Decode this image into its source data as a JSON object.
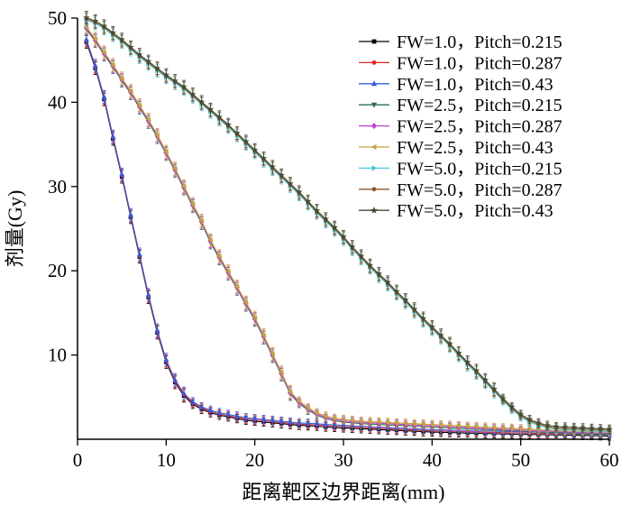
{
  "chart_data": {
    "type": "line",
    "title": "",
    "xlabel": "距离靶区边界距离(mm)",
    "ylabel": "剂量(Gy)",
    "xlim": [
      0,
      60
    ],
    "ylim": [
      0,
      50
    ],
    "xticks": [
      0,
      10,
      20,
      30,
      40,
      50,
      60
    ],
    "yticks": [
      10,
      20,
      30,
      40,
      50
    ],
    "grid": false,
    "legend_position": "top-right",
    "x": [
      1,
      2,
      3,
      4,
      5,
      6,
      7,
      8,
      9,
      10,
      11,
      12,
      13,
      14,
      15,
      16,
      17,
      18,
      19,
      20,
      21,
      22,
      23,
      24,
      25,
      26,
      27,
      28,
      29,
      30,
      31,
      32,
      33,
      34,
      35,
      36,
      37,
      38,
      39,
      40,
      41,
      42,
      43,
      44,
      45,
      46,
      47,
      48,
      49,
      50,
      51,
      52,
      53,
      54,
      55,
      56,
      57,
      58,
      59,
      60
    ],
    "curves": {
      "fw1": [
        47.3,
        44.2,
        40.5,
        35.8,
        31.3,
        26.5,
        21.8,
        17.0,
        12.8,
        9.3,
        6.9,
        5.3,
        4.3,
        3.7,
        3.3,
        3.0,
        2.8,
        2.6,
        2.4,
        2.3,
        2.2,
        2.1,
        2.0,
        1.9,
        1.8,
        1.75,
        1.7,
        1.6,
        1.55,
        1.5,
        1.45,
        1.4,
        1.35,
        1.3,
        1.25,
        1.2,
        1.15,
        1.1,
        1.05,
        1.0,
        0.97,
        0.94,
        0.91,
        0.88,
        0.85,
        0.82,
        0.8,
        0.78,
        0.76,
        0.74,
        0.72,
        0.7,
        0.68,
        0.66,
        0.64,
        0.62,
        0.6,
        0.58,
        0.56,
        0.54
      ],
      "fw25": [
        48.8,
        47.4,
        45.8,
        44.3,
        42.7,
        41.2,
        39.5,
        37.8,
        36.0,
        34.0,
        32.0,
        29.9,
        27.8,
        25.8,
        23.5,
        21.6,
        19.8,
        18.0,
        16.1,
        14.3,
        12.2,
        10.0,
        7.8,
        5.5,
        4.4,
        3.6,
        3.0,
        2.6,
        2.35,
        2.2,
        2.1,
        2.0,
        1.95,
        1.9,
        1.85,
        1.8,
        1.75,
        1.7,
        1.65,
        1.6,
        1.55,
        1.5,
        1.45,
        1.4,
        1.35,
        1.3,
        1.25,
        1.2,
        1.15,
        1.1,
        1.05,
        1.0,
        0.95,
        0.9,
        0.85,
        0.8,
        0.78,
        0.76,
        0.74,
        0.72
      ],
      "fw5": [
        49.9,
        49.5,
        48.9,
        48.1,
        47.3,
        46.4,
        45.5,
        44.7,
        43.9,
        43.1,
        42.4,
        41.7,
        40.8,
        39.9,
        39.0,
        38.1,
        37.2,
        36.2,
        35.2,
        34.2,
        33.2,
        32.2,
        31.2,
        30.2,
        29.2,
        28.1,
        27.0,
        26.0,
        25.0,
        23.9,
        22.7,
        21.6,
        20.5,
        19.5,
        18.5,
        17.4,
        16.4,
        15.3,
        14.2,
        13.2,
        12.2,
        11.2,
        10.1,
        9.0,
        8.0,
        6.9,
        5.8,
        4.7,
        3.7,
        2.8,
        2.2,
        1.8,
        1.5,
        1.35,
        1.3,
        1.25,
        1.2,
        1.15,
        1.1,
        1.05
      ]
    },
    "series": [
      {
        "name": "FW=1.0，Pitch=0.215",
        "curve": "fw1",
        "color": "#000000",
        "marker": "square"
      },
      {
        "name": "FW=1.0，Pitch=0.287",
        "curve": "fw1",
        "color": "#e8231f",
        "marker": "circle"
      },
      {
        "name": "FW=1.0，Pitch=0.43",
        "curve": "fw1",
        "color": "#3a5bd9",
        "marker": "triangle-up"
      },
      {
        "name": "FW=2.5，Pitch=0.215",
        "curve": "fw25",
        "color": "#2e6e4f",
        "marker": "triangle-down"
      },
      {
        "name": "FW=2.5，Pitch=0.287",
        "curve": "fw25",
        "color": "#c040d0",
        "marker": "diamond"
      },
      {
        "name": "FW=2.5，Pitch=0.43",
        "curve": "fw25",
        "color": "#c8a040",
        "marker": "triangle-left"
      },
      {
        "name": "FW=5.0，Pitch=0.215",
        "curve": "fw5",
        "color": "#46c8e0",
        "marker": "triangle-right"
      },
      {
        "name": "FW=5.0，Pitch=0.287",
        "curve": "fw5",
        "color": "#8a5a2a",
        "marker": "hexagon"
      },
      {
        "name": "FW=5.0，Pitch=0.43",
        "curve": "fw5",
        "color": "#4a4a30",
        "marker": "star"
      }
    ]
  }
}
